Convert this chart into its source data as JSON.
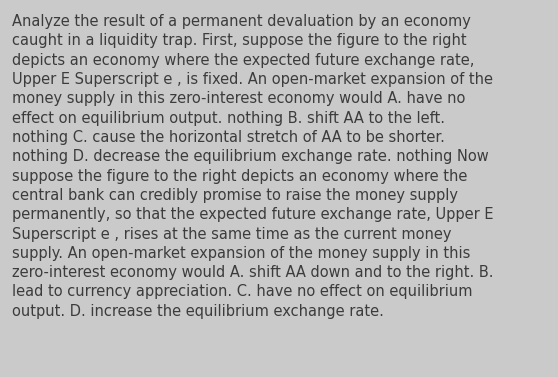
{
  "background_color": "#cacaca",
  "text_color": "#3c3c3c",
  "font_size": 10.5,
  "figsize": [
    5.58,
    3.77
  ],
  "dpi": 100,
  "text_lines": [
    "Analyze the result of a permanent devaluation by an economy",
    "caught in a liquidity trap. ​First, suppose the figure to the right",
    "depicts an economy where the expected future exchange rate,",
    "Upper E Superscript e , is fixed. An​ open-market expansion of the",
    "money supply in this​ zero-interest economy would A. have no",
    "effect on equilibrium output. nothing B. shift AA to the left.",
    "nothing C. cause the horizontal stretch of AA to be shorter.",
    "nothing D. decrease the equilibrium exchange rate. nothing Now",
    "suppose the figure to the right depicts an economy where the",
    "central bank can credibly promise to raise the money supply",
    "permanently​, so that the expected future exchange rate, Upper E",
    "Superscript e , rises at the same time as the current money",
    "supply. An​ open-market expansion of the money supply in this",
    "zero-interest economy would A. shift AA down and to the right. B.",
    "lead to currency appreciation. C. have no effect on equilibrium",
    "output. D. increase the equilibrium exchange rate."
  ]
}
